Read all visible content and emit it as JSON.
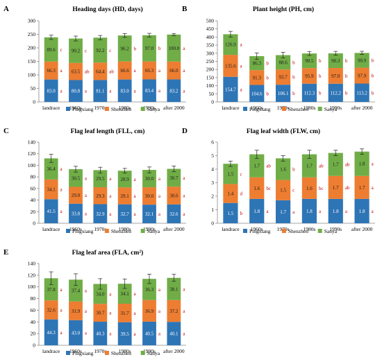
{
  "legend": [
    {
      "label": "Pingxiang",
      "color": "#2E75B6"
    },
    {
      "label": "Shenzhen",
      "color": "#ED7D31"
    },
    {
      "label": "Sanya",
      "color": "#70AD47"
    }
  ],
  "letter_color": "#C00000",
  "chart_data": [
    {
      "panel": "A",
      "type": "bar",
      "stacked": true,
      "title": "Heading days (HD, days)",
      "categories": [
        "landrace",
        "1960s",
        "1970s",
        "1980s",
        "1990s",
        "after 2000"
      ],
      "series": [
        {
          "name": "Pingxiang",
          "values": [
            83.0,
            80.8,
            81.1,
            83.0,
            83.4,
            83.2
          ],
          "letters": [
            "a",
            "a",
            "a",
            "a",
            "a",
            "a"
          ]
        },
        {
          "name": "Shenzhen",
          "values": [
            66.3,
            63.5,
            64.4,
            66.6,
            66.3,
            66.0
          ],
          "letters": [
            "a",
            "ab",
            "ab",
            "a",
            "a",
            "a"
          ]
        },
        {
          "name": "Sanya",
          "values": [
            89.6,
            90.2,
            92.2,
            96.2,
            97.0,
            100.0
          ],
          "letters": [
            "c",
            "c",
            "c",
            "b",
            "b",
            "a"
          ]
        }
      ],
      "error_bars": [
        8,
        9,
        8,
        7,
        7,
        4
      ],
      "ylim": [
        0,
        300
      ],
      "yticks": [
        0,
        50,
        100,
        150,
        200,
        250,
        300
      ]
    },
    {
      "panel": "B",
      "type": "bar",
      "stacked": true,
      "title": "Plant height (PH, cm)",
      "categories": [
        "landrace",
        "1960s",
        "1970s",
        "1980s",
        "1990s",
        "after 2000"
      ],
      "series": [
        {
          "name": "Pingxiang",
          "values": [
            154.7,
            104.6,
            106.1,
            112.3,
            112.2,
            113.2
          ],
          "letters": [
            "a",
            "b",
            "b",
            "b",
            "b",
            "b"
          ]
        },
        {
          "name": "Shenzhen",
          "values": [
            135.6,
            91.3,
            93.7,
            95.9,
            97.0,
            97.9
          ],
          "letters": [
            "a",
            "b",
            "b",
            "b",
            "b",
            "b"
          ]
        },
        {
          "name": "Sanya",
          "values": [
            126.9,
            86.3,
            88.6,
            90.5,
            90.3,
            90.9
          ],
          "letters": [
            "a",
            "b",
            "b",
            "b",
            "b",
            "b"
          ]
        }
      ],
      "error_bars": [
        18,
        20,
        18,
        12,
        12,
        10
      ],
      "ylim": [
        0,
        500
      ],
      "yticks": [
        0,
        50,
        100,
        150,
        200,
        250,
        300,
        350,
        400,
        450,
        500
      ]
    },
    {
      "panel": "C",
      "type": "bar",
      "stacked": true,
      "title": "Flag leaf length (FLL, cm)",
      "categories": [
        "landrace",
        "1960s",
        "1970s",
        "1980s",
        "1990s",
        "after 2000"
      ],
      "series": [
        {
          "name": "Pingxiang",
          "values": [
            41.5,
            33.8,
            32.9,
            32.7,
            32.1,
            32.6
          ],
          "letters": [
            "a",
            "a",
            "a",
            "a",
            "a",
            "a"
          ]
        },
        {
          "name": "Shenzhen",
          "values": [
            34.1,
            29.0,
            29.3,
            29.1,
            30.0,
            30.6
          ],
          "letters": [
            "a",
            "a",
            "a",
            "a",
            "a",
            "a"
          ]
        },
        {
          "name": "Sanya",
          "values": [
            36.4,
            30.5,
            29.5,
            28.9,
            30.0,
            30.7
          ],
          "letters": [
            "a",
            "a",
            "a",
            "a",
            "a",
            "a"
          ]
        }
      ],
      "error_bars": [
        7,
        5,
        5,
        4,
        5,
        5
      ],
      "ylim": [
        0,
        140
      ],
      "yticks": [
        0,
        20,
        40,
        60,
        80,
        100,
        120,
        140
      ]
    },
    {
      "panel": "D",
      "type": "bar",
      "stacked": true,
      "title": "Flag leaf width (FLW, cm)",
      "categories": [
        "landrace",
        "1960s",
        "1970s",
        "1980s",
        "1990s",
        "after 2000"
      ],
      "series": [
        {
          "name": "Pingxiang",
          "values": [
            1.5,
            1.8,
            1.7,
            1.8,
            1.8,
            1.8
          ],
          "letters": [
            "b",
            "a",
            "a",
            "a",
            "a",
            "a"
          ]
        },
        {
          "name": "Shenzhen",
          "values": [
            1.4,
            1.6,
            1.5,
            1.6,
            1.7,
            1.7
          ],
          "letters": [
            "d",
            "bc",
            "c",
            "bc",
            "ab",
            "a"
          ]
        },
        {
          "name": "Sanya",
          "values": [
            1.5,
            1.7,
            1.6,
            1.7,
            1.7,
            1.8
          ],
          "letters": [
            "c",
            "ab",
            "b",
            "ab",
            "ab",
            "a"
          ]
        }
      ],
      "error_bars": [
        0.2,
        0.3,
        0.2,
        0.3,
        0.2,
        0.2
      ],
      "ylim": [
        0,
        6
      ],
      "yticks": [
        0,
        1,
        2,
        3,
        4,
        5,
        6
      ]
    },
    {
      "panel": "E",
      "type": "bar",
      "stacked": true,
      "title": "Flag leaf area (FLA, cm²)",
      "categories": [
        "landrace",
        "1960s",
        "1970s",
        "1980s",
        "1990s",
        "after 2000"
      ],
      "series": [
        {
          "name": "Pingxiang",
          "values": [
            44.3,
            43.0,
            40.3,
            39.5,
            40.5,
            40.1
          ],
          "letters": [
            "a",
            "a",
            "a",
            "a",
            "a",
            "a"
          ]
        },
        {
          "name": "Shenzhen",
          "values": [
            32.6,
            31.9,
            30.7,
            31.7,
            36.9,
            37.2
          ],
          "letters": [
            "a",
            "a",
            "a",
            "a",
            "a",
            "a"
          ]
        },
        {
          "name": "Sanya",
          "values": [
            37.8,
            37.4,
            34.0,
            34.1,
            36.3,
            38.1
          ],
          "letters": [
            "a",
            "a",
            "a",
            "a",
            "a",
            "a"
          ]
        }
      ],
      "error_bars": [
        11,
        10,
        9,
        8,
        8,
        6
      ],
      "ylim": [
        0,
        140
      ],
      "yticks": [
        0,
        20,
        40,
        60,
        80,
        100,
        120,
        140
      ]
    }
  ]
}
